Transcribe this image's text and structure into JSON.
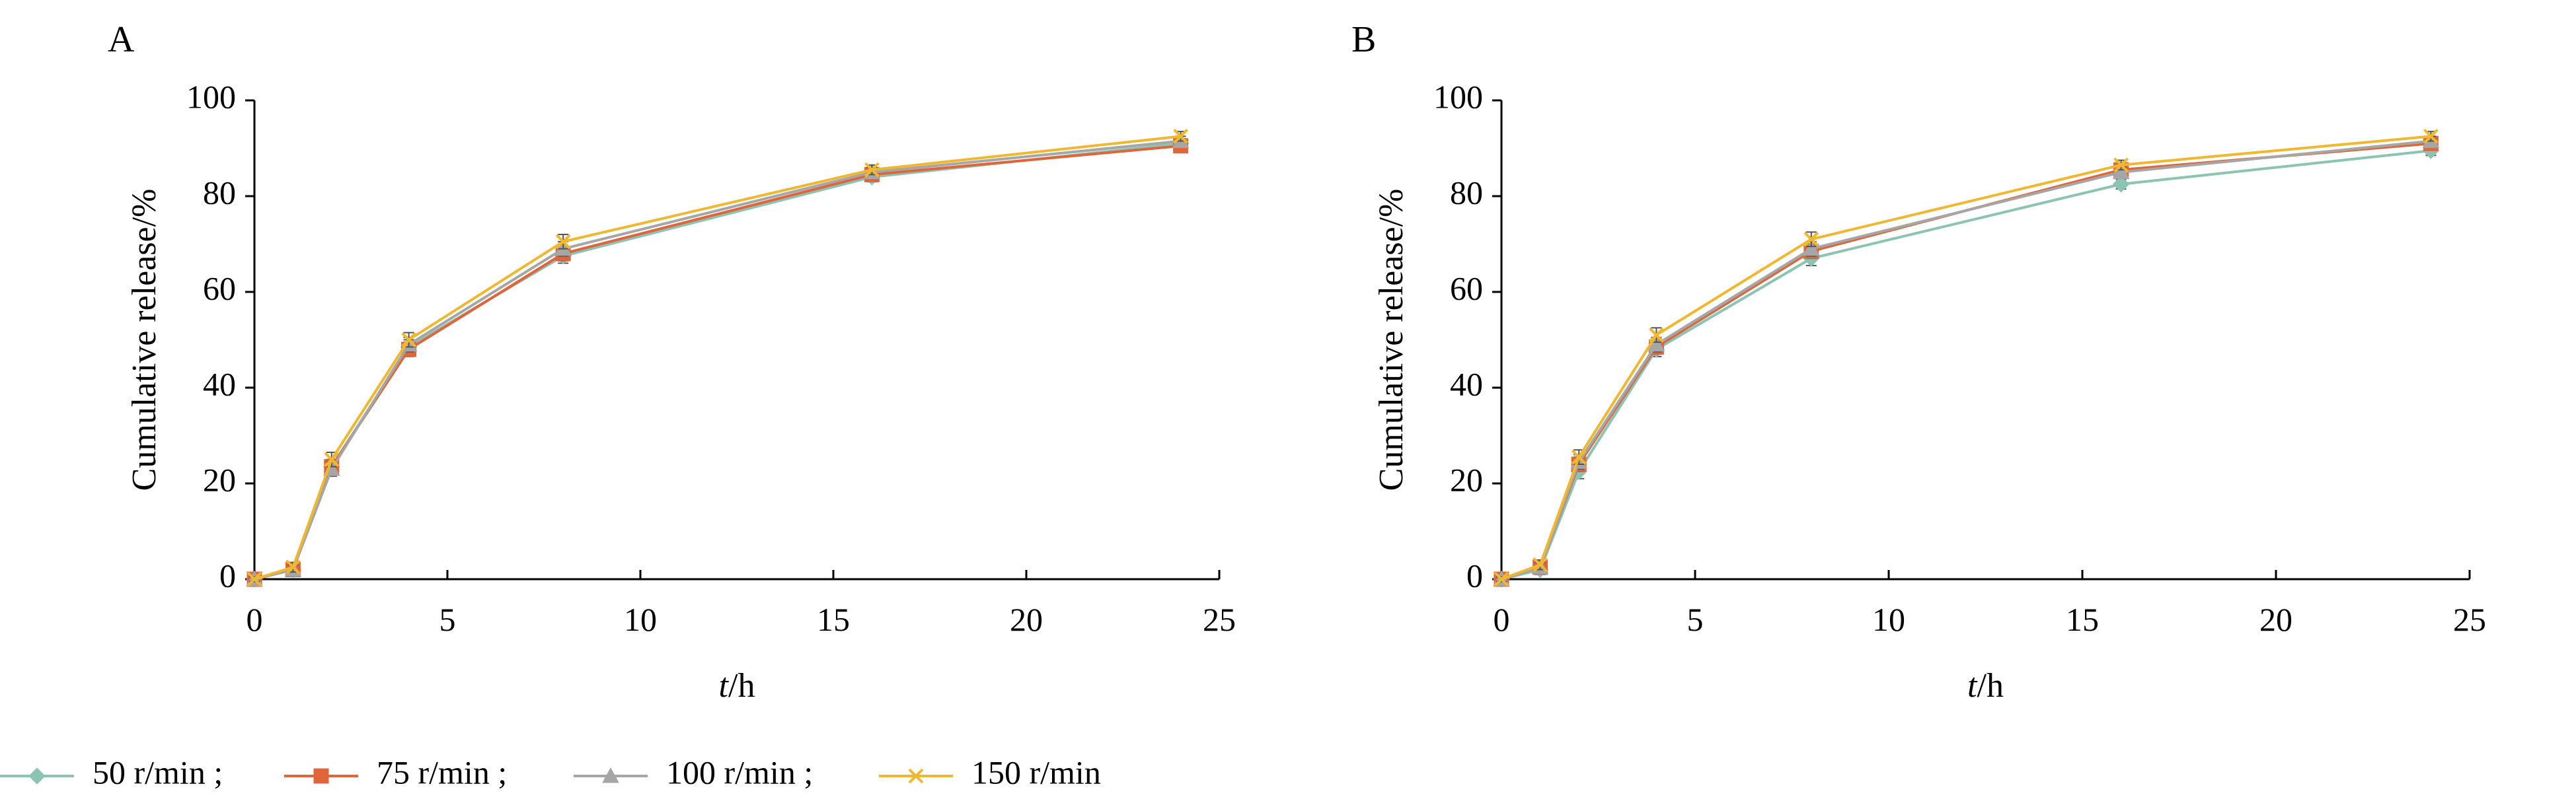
{
  "chart_data": [
    {
      "type": "line",
      "panel_label": "A",
      "xlabel_italic": "t",
      "xlabel_unit": "/h",
      "ylabel": "Cumulative release/%",
      "xlim": [
        0,
        25
      ],
      "ylim": [
        0,
        100
      ],
      "xticks": [
        0,
        5,
        10,
        15,
        20,
        25
      ],
      "yticks": [
        0,
        20,
        40,
        60,
        80,
        100
      ],
      "x": [
        0,
        1,
        2,
        4,
        8,
        16,
        24
      ],
      "series": [
        {
          "name": "50 r/min",
          "values": [
            0,
            2.0,
            23.5,
            48.5,
            67.5,
            84.0,
            91.0
          ],
          "errors": [
            0.5,
            1.0,
            1.5,
            1.5,
            1.5,
            1.0,
            1.0
          ]
        },
        {
          "name": "75 r/min",
          "values": [
            0,
            2.0,
            23.5,
            48.0,
            68.0,
            84.5,
            90.5
          ],
          "errors": [
            0.5,
            1.0,
            1.5,
            1.5,
            1.5,
            1.0,
            1.0
          ]
        },
        {
          "name": "100 r/min",
          "values": [
            0,
            2.0,
            23.0,
            49.0,
            69.0,
            85.0,
            91.5
          ],
          "errors": [
            0.5,
            1.0,
            1.5,
            1.5,
            1.5,
            1.0,
            1.0
          ]
        },
        {
          "name": "150 r/min",
          "values": [
            0,
            2.5,
            25.0,
            50.0,
            70.5,
            85.5,
            92.5
          ],
          "errors": [
            0.5,
            1.0,
            1.5,
            1.5,
            1.5,
            1.0,
            1.0
          ]
        }
      ]
    },
    {
      "type": "line",
      "panel_label": "B",
      "xlabel_italic": "t",
      "xlabel_unit": "/h",
      "ylabel": "Cumulative release/%",
      "xlim": [
        0,
        25
      ],
      "ylim": [
        0,
        100
      ],
      "xticks": [
        0,
        5,
        10,
        15,
        20,
        25
      ],
      "yticks": [
        0,
        20,
        40,
        60,
        80,
        100
      ],
      "x": [
        0,
        1,
        2,
        4,
        8,
        16,
        24
      ],
      "series": [
        {
          "name": "50 r/min",
          "values": [
            0,
            2.0,
            22.5,
            48.0,
            67.0,
            82.5,
            89.5
          ],
          "errors": [
            0.5,
            1.0,
            1.5,
            1.5,
            1.5,
            1.0,
            1.0
          ]
        },
        {
          "name": "75 r/min",
          "values": [
            0,
            2.5,
            24.0,
            48.5,
            68.5,
            85.5,
            91.0
          ],
          "errors": [
            0.5,
            1.0,
            1.5,
            1.5,
            1.5,
            1.0,
            1.0
          ]
        },
        {
          "name": "100 r/min",
          "values": [
            0,
            2.5,
            24.5,
            49.0,
            69.0,
            85.0,
            91.5
          ],
          "errors": [
            0.5,
            1.0,
            1.5,
            1.5,
            1.5,
            1.0,
            1.0
          ]
        },
        {
          "name": "150 r/min",
          "values": [
            0,
            3.0,
            25.5,
            51.0,
            71.0,
            86.5,
            92.5
          ],
          "errors": [
            0.5,
            1.0,
            1.5,
            1.5,
            1.5,
            1.0,
            1.0
          ]
        }
      ]
    }
  ],
  "legend": {
    "items": [
      {
        "label": "50 r/min ;",
        "color": "#8cc4b4",
        "marker": "diamond"
      },
      {
        "label": "75 r/min ;",
        "color": "#e0653a",
        "marker": "square"
      },
      {
        "label": "100 r/min ;",
        "color": "#a6a6a6",
        "marker": "triangle"
      },
      {
        "label": "150 r/min",
        "color": "#f0b830",
        "marker": "x"
      }
    ]
  },
  "series_styles": [
    {
      "color": "#8cc4b4",
      "marker": "diamond"
    },
    {
      "color": "#e0653a",
      "marker": "square"
    },
    {
      "color": "#a6a6a6",
      "marker": "triangle"
    },
    {
      "color": "#f0b830",
      "marker": "x"
    }
  ]
}
